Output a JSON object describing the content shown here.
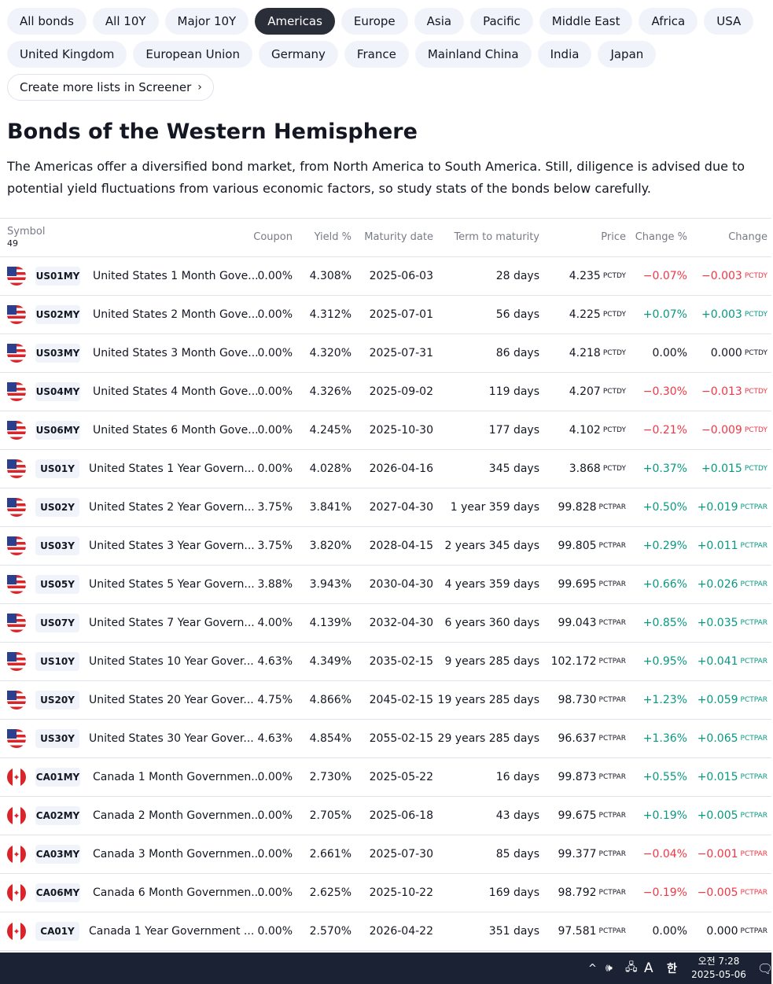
{
  "tabs_row1": [
    {
      "label": "All bonds",
      "active": false
    },
    {
      "label": "All 10Y",
      "active": false
    },
    {
      "label": "Major 10Y",
      "active": false
    },
    {
      "label": "Americas",
      "active": true
    },
    {
      "label": "Europe",
      "active": false
    },
    {
      "label": "Asia",
      "active": false
    },
    {
      "label": "Pacific",
      "active": false
    },
    {
      "label": "Middle East",
      "active": false
    },
    {
      "label": "Africa",
      "active": false
    },
    {
      "label": "USA",
      "active": false
    }
  ],
  "tabs_row2": [
    {
      "label": "United Kingdom"
    },
    {
      "label": "European Union"
    },
    {
      "label": "Germany"
    },
    {
      "label": "France"
    },
    {
      "label": "Mainland China"
    },
    {
      "label": "India"
    },
    {
      "label": "Japan"
    }
  ],
  "screener_link": "Create more lists in Screener",
  "heading": "Bonds of the Western Hemisphere",
  "description": "The Americas offer a diversified bond market, from North America to South America. Still, diligence is advised due to potential yield fluctuations from various economic factors, so study stats of the bonds below carefully.",
  "table": {
    "headers": {
      "symbol": "Symbol",
      "count": "49",
      "coupon": "Coupon",
      "yield": "Yield %",
      "maturity": "Maturity date",
      "term": "Term to maturity",
      "price": "Price",
      "change_pct": "Change %",
      "change": "Change"
    },
    "rows": [
      {
        "flag": "us",
        "ticker": "US01MY",
        "name": "United States 1 Month Gove...",
        "coupon": "0.00%",
        "yield": "4.308%",
        "maturity": "2025-06-03",
        "term": "28 days",
        "price": "4.235",
        "price_unit": "PCTDY",
        "change_pct": "−0.07%",
        "change": "−0.003",
        "change_unit": "PCTDY",
        "dir": "neg"
      },
      {
        "flag": "us",
        "ticker": "US02MY",
        "name": "United States 2 Month Gove...",
        "coupon": "0.00%",
        "yield": "4.312%",
        "maturity": "2025-07-01",
        "term": "56 days",
        "price": "4.225",
        "price_unit": "PCTDY",
        "change_pct": "+0.07%",
        "change": "+0.003",
        "change_unit": "PCTDY",
        "dir": "pos"
      },
      {
        "flag": "us",
        "ticker": "US03MY",
        "name": "United States 3 Month Gove...",
        "coupon": "0.00%",
        "yield": "4.320%",
        "maturity": "2025-07-31",
        "term": "86 days",
        "price": "4.218",
        "price_unit": "PCTDY",
        "change_pct": "0.00%",
        "change": "0.000",
        "change_unit": "PCTDY",
        "dir": "zero"
      },
      {
        "flag": "us",
        "ticker": "US04MY",
        "name": "United States 4 Month Gove...",
        "coupon": "0.00%",
        "yield": "4.326%",
        "maturity": "2025-09-02",
        "term": "119 days",
        "price": "4.207",
        "price_unit": "PCTDY",
        "change_pct": "−0.30%",
        "change": "−0.013",
        "change_unit": "PCTDY",
        "dir": "neg"
      },
      {
        "flag": "us",
        "ticker": "US06MY",
        "name": "United States 6 Month Gove...",
        "coupon": "0.00%",
        "yield": "4.245%",
        "maturity": "2025-10-30",
        "term": "177 days",
        "price": "4.102",
        "price_unit": "PCTDY",
        "change_pct": "−0.21%",
        "change": "−0.009",
        "change_unit": "PCTDY",
        "dir": "neg"
      },
      {
        "flag": "us",
        "ticker": "US01Y",
        "name": "United States 1 Year Govern...",
        "coupon": "0.00%",
        "yield": "4.028%",
        "maturity": "2026-04-16",
        "term": "345 days",
        "price": "3.868",
        "price_unit": "PCTDY",
        "change_pct": "+0.37%",
        "change": "+0.015",
        "change_unit": "PCTDY",
        "dir": "pos"
      },
      {
        "flag": "us",
        "ticker": "US02Y",
        "name": "United States 2 Year Govern...",
        "coupon": "3.75%",
        "yield": "3.841%",
        "maturity": "2027-04-30",
        "term": "1 year 359 days",
        "price": "99.828",
        "price_unit": "PCTPAR",
        "change_pct": "+0.50%",
        "change": "+0.019",
        "change_unit": "PCTPAR",
        "dir": "pos"
      },
      {
        "flag": "us",
        "ticker": "US03Y",
        "name": "United States 3 Year Govern...",
        "coupon": "3.75%",
        "yield": "3.820%",
        "maturity": "2028-04-15",
        "term": "2 years 345 days",
        "price": "99.805",
        "price_unit": "PCTPAR",
        "change_pct": "+0.29%",
        "change": "+0.011",
        "change_unit": "PCTPAR",
        "dir": "pos"
      },
      {
        "flag": "us",
        "ticker": "US05Y",
        "name": "United States 5 Year Govern...",
        "coupon": "3.88%",
        "yield": "3.943%",
        "maturity": "2030-04-30",
        "term": "4 years 359 days",
        "price": "99.695",
        "price_unit": "PCTPAR",
        "change_pct": "+0.66%",
        "change": "+0.026",
        "change_unit": "PCTPAR",
        "dir": "pos"
      },
      {
        "flag": "us",
        "ticker": "US07Y",
        "name": "United States 7 Year Govern...",
        "coupon": "4.00%",
        "yield": "4.139%",
        "maturity": "2032-04-30",
        "term": "6 years 360 days",
        "price": "99.043",
        "price_unit": "PCTPAR",
        "change_pct": "+0.85%",
        "change": "+0.035",
        "change_unit": "PCTPAR",
        "dir": "pos"
      },
      {
        "flag": "us",
        "ticker": "US10Y",
        "name": "United States 10 Year Gover...",
        "coupon": "4.63%",
        "yield": "4.349%",
        "maturity": "2035-02-15",
        "term": "9 years 285 days",
        "price": "102.172",
        "price_unit": "PCTPAR",
        "change_pct": "+0.95%",
        "change": "+0.041",
        "change_unit": "PCTPAR",
        "dir": "pos"
      },
      {
        "flag": "us",
        "ticker": "US20Y",
        "name": "United States 20 Year Gover...",
        "coupon": "4.75%",
        "yield": "4.866%",
        "maturity": "2045-02-15",
        "term": "19 years 285 days",
        "price": "98.730",
        "price_unit": "PCTPAR",
        "change_pct": "+1.23%",
        "change": "+0.059",
        "change_unit": "PCTPAR",
        "dir": "pos"
      },
      {
        "flag": "us",
        "ticker": "US30Y",
        "name": "United States 30 Year Gover...",
        "coupon": "4.63%",
        "yield": "4.854%",
        "maturity": "2055-02-15",
        "term": "29 years 285 days",
        "price": "96.637",
        "price_unit": "PCTPAR",
        "change_pct": "+1.36%",
        "change": "+0.065",
        "change_unit": "PCTPAR",
        "dir": "pos"
      },
      {
        "flag": "ca",
        "ticker": "CA01MY",
        "name": "Canada 1 Month Governmen...",
        "coupon": "0.00%",
        "yield": "2.730%",
        "maturity": "2025-05-22",
        "term": "16 days",
        "price": "99.873",
        "price_unit": "PCTPAR",
        "change_pct": "+0.55%",
        "change": "+0.015",
        "change_unit": "PCTPAR",
        "dir": "pos"
      },
      {
        "flag": "ca",
        "ticker": "CA02MY",
        "name": "Canada 2 Month Governmen...",
        "coupon": "0.00%",
        "yield": "2.705%",
        "maturity": "2025-06-18",
        "term": "43 days",
        "price": "99.675",
        "price_unit": "PCTPAR",
        "change_pct": "+0.19%",
        "change": "+0.005",
        "change_unit": "PCTPAR",
        "dir": "pos"
      },
      {
        "flag": "ca",
        "ticker": "CA03MY",
        "name": "Canada 3 Month Governmen...",
        "coupon": "0.00%",
        "yield": "2.661%",
        "maturity": "2025-07-30",
        "term": "85 days",
        "price": "99.377",
        "price_unit": "PCTPAR",
        "change_pct": "−0.04%",
        "change": "−0.001",
        "change_unit": "PCTPAR",
        "dir": "neg"
      },
      {
        "flag": "ca",
        "ticker": "CA06MY",
        "name": "Canada 6 Month Governmen...",
        "coupon": "0.00%",
        "yield": "2.625%",
        "maturity": "2025-10-22",
        "term": "169 days",
        "price": "98.792",
        "price_unit": "PCTPAR",
        "change_pct": "−0.19%",
        "change": "−0.005",
        "change_unit": "PCTPAR",
        "dir": "neg"
      },
      {
        "flag": "ca",
        "ticker": "CA01Y",
        "name": "Canada 1 Year Government ...",
        "coupon": "0.00%",
        "yield": "2.570%",
        "maturity": "2026-04-22",
        "term": "351 days",
        "price": "97.581",
        "price_unit": "PCTPAR",
        "change_pct": "0.00%",
        "change": "0.000",
        "change_unit": "PCTPAR",
        "dir": "zero"
      }
    ]
  },
  "taskbar": {
    "chevron_icon": "^",
    "volume_icon": "🕪",
    "network_icon": "🖧",
    "ime_a": "A",
    "ime_korean": "한",
    "time": "오전 7:28",
    "date": "2025-05-06",
    "notification_icon": "🗨"
  },
  "colors": {
    "negative": "#f23645",
    "positive": "#089981",
    "active_tab": "#2a2e39",
    "taskbar": "#1a2233"
  }
}
